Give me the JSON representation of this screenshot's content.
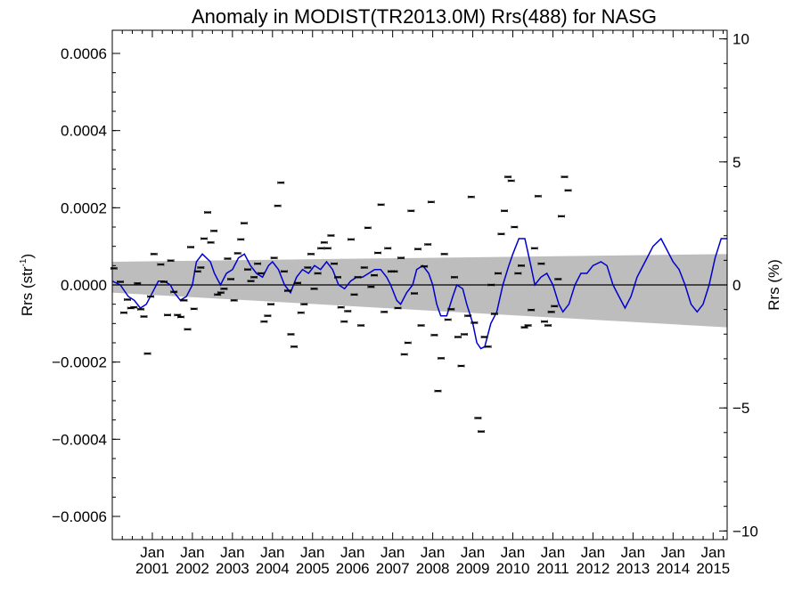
{
  "chart_data": {
    "type": "scatter",
    "title": "Anomaly in MODIST(TR2013.0M) Rrs(488) for NASG",
    "ylabel_left": {
      "main": "Rrs (str",
      "sup": "-1",
      "close": ")"
    },
    "ylabel_right": "Rrs (%)",
    "xlim": [
      2000.0,
      2015.35
    ],
    "ylim": [
      -0.00066,
      0.00066
    ],
    "ylim_right": [
      -10.35,
      10.35
    ],
    "x_ticks": [
      {
        "x": 2001.0,
        "top": "Jan",
        "bottom": "2001"
      },
      {
        "x": 2002.0,
        "top": "Jan",
        "bottom": "2002"
      },
      {
        "x": 2003.0,
        "top": "Jan",
        "bottom": "2003"
      },
      {
        "x": 2004.0,
        "top": "Jan",
        "bottom": "2004"
      },
      {
        "x": 2005.0,
        "top": "Jan",
        "bottom": "2005"
      },
      {
        "x": 2006.0,
        "top": "Jan",
        "bottom": "2006"
      },
      {
        "x": 2007.0,
        "top": "Jan",
        "bottom": "2007"
      },
      {
        "x": 2008.0,
        "top": "Jan",
        "bottom": "2008"
      },
      {
        "x": 2009.0,
        "top": "Jan",
        "bottom": "2009"
      },
      {
        "x": 2010.0,
        "top": "Jan",
        "bottom": "2010"
      },
      {
        "x": 2011.0,
        "top": "Jan",
        "bottom": "2011"
      },
      {
        "x": 2012.0,
        "top": "Jan",
        "bottom": "2012"
      },
      {
        "x": 2013.0,
        "top": "Jan",
        "bottom": "2013"
      },
      {
        "x": 2014.0,
        "top": "Jan",
        "bottom": "2014"
      },
      {
        "x": 2015.0,
        "top": "Jan",
        "bottom": "2015"
      }
    ],
    "y_ticks_left": [
      {
        "value": 0.0006,
        "label": "0.0006"
      },
      {
        "value": 0.0004,
        "label": "0.0004"
      },
      {
        "value": 0.0002,
        "label": "0.0002"
      },
      {
        "value": 0.0,
        "label": "0.0000"
      },
      {
        "value": -0.0002,
        "label": "−0.0002"
      },
      {
        "value": -0.0004,
        "label": "−0.0004"
      },
      {
        "value": -0.0006,
        "label": "−0.0006"
      }
    ],
    "y_ticks_right": [
      {
        "value": 10,
        "label": "10"
      },
      {
        "value": 5,
        "label": "5"
      },
      {
        "value": 0,
        "label": "0"
      },
      {
        "value": -5,
        "label": "−5"
      },
      {
        "value": -10,
        "label": "−10"
      }
    ],
    "uncertainty_band": {
      "x": [
        2000.0,
        2015.35
      ],
      "upper": [
        6e-05,
        8e-05
      ],
      "lower": [
        -2e-05,
        -0.00011
      ]
    },
    "scatter_points": [
      [
        2000.04,
        4.3e-05
      ],
      [
        2000.2,
        8e-06
      ],
      [
        2000.29,
        -7.2e-05
      ],
      [
        2000.38,
        -3.8e-05
      ],
      [
        2000.46,
        -6e-05
      ],
      [
        2000.54,
        -5.8e-05
      ],
      [
        2000.63,
        4e-06
      ],
      [
        2000.71,
        -6.3e-05
      ],
      [
        2000.79,
        -8.2e-05
      ],
      [
        2000.88,
        -0.000178
      ],
      [
        2000.96,
        -3e-05
      ],
      [
        2001.04,
        8e-05
      ],
      [
        2001.21,
        5.3e-05
      ],
      [
        2001.29,
        8e-06
      ],
      [
        2001.38,
        -7.8e-05
      ],
      [
        2001.46,
        6.3e-05
      ],
      [
        2001.54,
        -1.8e-05
      ],
      [
        2001.63,
        -7.8e-05
      ],
      [
        2001.71,
        -8.3e-05
      ],
      [
        2001.79,
        -4e-05
      ],
      [
        2001.88,
        -0.000115
      ],
      [
        2001.96,
        9.8e-05
      ],
      [
        2002.04,
        -6.2e-05
      ],
      [
        2002.13,
        3.5e-05
      ],
      [
        2002.21,
        4.5e-05
      ],
      [
        2002.29,
        0.00012
      ],
      [
        2002.38,
        0.000188
      ],
      [
        2002.46,
        0.00011
      ],
      [
        2002.54,
        0.00014
      ],
      [
        2002.63,
        -2.5e-05
      ],
      [
        2002.71,
        -2e-05
      ],
      [
        2002.79,
        -1e-05
      ],
      [
        2002.88,
        6.8e-05
      ],
      [
        2002.96,
        1.5e-05
      ],
      [
        2003.04,
        -4e-05
      ],
      [
        2003.13,
        8.2e-05
      ],
      [
        2003.21,
        0.000118
      ],
      [
        2003.29,
        0.00016
      ],
      [
        2003.38,
        4e-05
      ],
      [
        2003.46,
        1e-05
      ],
      [
        2003.54,
        2e-05
      ],
      [
        2003.63,
        5.5e-05
      ],
      [
        2003.71,
        3e-05
      ],
      [
        2003.79,
        -9.5e-05
      ],
      [
        2003.88,
        -8e-05
      ],
      [
        2003.96,
        -5e-05
      ],
      [
        2004.04,
        7e-05
      ],
      [
        2004.13,
        0.000205
      ],
      [
        2004.21,
        0.000265
      ],
      [
        2004.29,
        3.5e-05
      ],
      [
        2004.38,
        -1.5e-05
      ],
      [
        2004.46,
        -0.000128
      ],
      [
        2004.54,
        -0.00016
      ],
      [
        2004.63,
        5e-06
      ],
      [
        2004.71,
        -7.2e-05
      ],
      [
        2004.79,
        -5e-05
      ],
      [
        2004.88,
        4.5e-05
      ],
      [
        2004.96,
        8e-05
      ],
      [
        2005.04,
        -1e-05
      ],
      [
        2005.13,
        3e-05
      ],
      [
        2005.21,
        9.5e-05
      ],
      [
        2005.29,
        0.00011
      ],
      [
        2005.38,
        9.5e-05
      ],
      [
        2005.46,
        0.000128
      ],
      [
        2005.54,
        5.5e-05
      ],
      [
        2005.63,
        2e-05
      ],
      [
        2005.71,
        -5.8e-05
      ],
      [
        2005.79,
        -9.5e-05
      ],
      [
        2005.88,
        -6.8e-05
      ],
      [
        2005.96,
        0.000118
      ],
      [
        2006.04,
        -2.5e-05
      ],
      [
        2006.13,
        2e-05
      ],
      [
        2006.21,
        -0.000105
      ],
      [
        2006.29,
        4.5e-05
      ],
      [
        2006.38,
        0.000148
      ],
      [
        2006.46,
        -5e-06
      ],
      [
        2006.54,
        2.5e-05
      ],
      [
        2006.63,
        8.3e-05
      ],
      [
        2006.71,
        0.000208
      ],
      [
        2006.79,
        -7e-05
      ],
      [
        2006.88,
        9.5e-05
      ],
      [
        2006.96,
        3.5e-05
      ],
      [
        2007.04,
        3.5e-05
      ],
      [
        2007.13,
        -6e-05
      ],
      [
        2007.21,
        7e-05
      ],
      [
        2007.29,
        -0.00018
      ],
      [
        2007.38,
        -0.00015
      ],
      [
        2007.46,
        0.000192
      ],
      [
        2007.54,
        -2.2e-05
      ],
      [
        2007.63,
        9.3e-05
      ],
      [
        2007.71,
        -0.000105
      ],
      [
        2007.79,
        4.8e-05
      ],
      [
        2007.88,
        0.000105
      ],
      [
        2007.96,
        0.000215
      ],
      [
        2008.04,
        -0.00013
      ],
      [
        2008.13,
        -0.000275
      ],
      [
        2008.21,
        -0.00019
      ],
      [
        2008.29,
        8e-05
      ],
      [
        2008.38,
        -9e-05
      ],
      [
        2008.46,
        -6.3e-05
      ],
      [
        2008.54,
        2e-05
      ],
      [
        2008.63,
        -0.000135
      ],
      [
        2008.71,
        -0.00021
      ],
      [
        2008.79,
        -0.000128
      ],
      [
        2008.88,
        -8e-05
      ],
      [
        2008.96,
        0.000228
      ],
      [
        2009.04,
        -9.8e-05
      ],
      [
        2009.13,
        -0.000345
      ],
      [
        2009.21,
        -0.00038
      ],
      [
        2009.29,
        -0.000135
      ],
      [
        2009.38,
        -0.00016
      ],
      [
        2009.46,
        0.0
      ],
      [
        2009.54,
        -7.5e-05
      ],
      [
        2009.63,
        3e-05
      ],
      [
        2009.71,
        0.000132
      ],
      [
        2009.79,
        0.000192
      ],
      [
        2009.88,
        0.00028
      ],
      [
        2009.96,
        0.00027
      ],
      [
        2010.04,
        0.00015
      ],
      [
        2010.13,
        3e-05
      ],
      [
        2010.21,
        5e-05
      ],
      [
        2010.29,
        -0.00011
      ],
      [
        2010.38,
        -0.000105
      ],
      [
        2010.46,
        -6.5e-05
      ],
      [
        2010.54,
        9.5e-05
      ],
      [
        2010.63,
        0.00023
      ],
      [
        2010.71,
        5.5e-05
      ],
      [
        2010.79,
        -9.5e-05
      ],
      [
        2010.88,
        -0.000105
      ],
      [
        2010.96,
        -7e-05
      ],
      [
        2011.04,
        -5.5e-05
      ],
      [
        2011.13,
        1.5e-05
      ],
      [
        2011.21,
        0.000178
      ],
      [
        2011.29,
        0.00028
      ],
      [
        2011.38,
        0.000245
      ]
    ],
    "blue_line": [
      [
        2000.0,
        1e-05
      ],
      [
        2000.2,
        0.0
      ],
      [
        2000.4,
        -3e-05
      ],
      [
        2000.55,
        -4e-05
      ],
      [
        2000.7,
        -6e-05
      ],
      [
        2000.85,
        -5e-05
      ],
      [
        2001.0,
        -2e-05
      ],
      [
        2001.15,
        1e-05
      ],
      [
        2001.3,
        1e-05
      ],
      [
        2001.45,
        0.0
      ],
      [
        2001.55,
        -2e-05
      ],
      [
        2001.7,
        -4e-05
      ],
      [
        2001.85,
        -3e-05
      ],
      [
        2002.0,
        0.0
      ],
      [
        2002.1,
        6e-05
      ],
      [
        2002.25,
        8e-05
      ],
      [
        2002.45,
        6e-05
      ],
      [
        2002.55,
        3e-05
      ],
      [
        2002.7,
        0.0
      ],
      [
        2002.85,
        3e-05
      ],
      [
        2003.0,
        4e-05
      ],
      [
        2003.15,
        7e-05
      ],
      [
        2003.3,
        8e-05
      ],
      [
        2003.45,
        5e-05
      ],
      [
        2003.6,
        3e-05
      ],
      [
        2003.75,
        2e-05
      ],
      [
        2003.9,
        5e-05
      ],
      [
        2004.0,
        6e-05
      ],
      [
        2004.15,
        4e-05
      ],
      [
        2004.3,
        0.0
      ],
      [
        2004.45,
        -2e-05
      ],
      [
        2004.6,
        2e-05
      ],
      [
        2004.75,
        4e-05
      ],
      [
        2004.9,
        3e-05
      ],
      [
        2005.05,
        5e-05
      ],
      [
        2005.2,
        4e-05
      ],
      [
        2005.35,
        6e-05
      ],
      [
        2005.5,
        4e-05
      ],
      [
        2005.65,
        0.0
      ],
      [
        2005.8,
        -1e-05
      ],
      [
        2005.95,
        1e-05
      ],
      [
        2006.1,
        2e-05
      ],
      [
        2006.25,
        2e-05
      ],
      [
        2006.4,
        3e-05
      ],
      [
        2006.55,
        4e-05
      ],
      [
        2006.7,
        4e-05
      ],
      [
        2006.85,
        2e-05
      ],
      [
        2006.95,
        0.0
      ],
      [
        2007.1,
        -4e-05
      ],
      [
        2007.2,
        -5e-05
      ],
      [
        2007.35,
        -2e-05
      ],
      [
        2007.5,
        0.0
      ],
      [
        2007.6,
        4e-05
      ],
      [
        2007.75,
        5e-05
      ],
      [
        2007.9,
        3e-05
      ],
      [
        2008.0,
        0.0
      ],
      [
        2008.1,
        -5e-05
      ],
      [
        2008.2,
        -8e-05
      ],
      [
        2008.35,
        -8e-05
      ],
      [
        2008.5,
        -3e-05
      ],
      [
        2008.6,
        0.0
      ],
      [
        2008.75,
        -1e-05
      ],
      [
        2008.85,
        -5e-05
      ],
      [
        2009.0,
        -0.0001
      ],
      [
        2009.1,
        -0.00015
      ],
      [
        2009.2,
        -0.000165
      ],
      [
        2009.3,
        -0.00016
      ],
      [
        2009.45,
        -0.0001
      ],
      [
        2009.6,
        -7e-05
      ],
      [
        2009.75,
        -0.0
      ],
      [
        2009.9,
        5e-05
      ],
      [
        2010.0,
        8e-05
      ],
      [
        2010.15,
        0.00012
      ],
      [
        2010.3,
        0.00012
      ],
      [
        2010.45,
        5e-05
      ],
      [
        2010.55,
        0.0
      ],
      [
        2010.7,
        2e-05
      ],
      [
        2010.85,
        3e-05
      ],
      [
        2011.0,
        0.0
      ],
      [
        2011.15,
        -5e-05
      ],
      [
        2011.25,
        -7e-05
      ],
      [
        2011.4,
        -5e-05
      ],
      [
        2011.55,
        0.0
      ],
      [
        2011.7,
        3e-05
      ],
      [
        2011.85,
        3e-05
      ],
      [
        2012.0,
        5e-05
      ],
      [
        2012.2,
        6e-05
      ],
      [
        2012.35,
        5e-05
      ],
      [
        2012.5,
        0.0
      ],
      [
        2012.65,
        -3e-05
      ],
      [
        2012.8,
        -6e-05
      ],
      [
        2012.95,
        -3e-05
      ],
      [
        2013.1,
        2e-05
      ],
      [
        2013.3,
        6e-05
      ],
      [
        2013.5,
        0.0001
      ],
      [
        2013.7,
        0.00012
      ],
      [
        2013.85,
        9e-05
      ],
      [
        2014.0,
        6e-05
      ],
      [
        2014.15,
        4e-05
      ],
      [
        2014.3,
        0.0
      ],
      [
        2014.45,
        -5e-05
      ],
      [
        2014.6,
        -7e-05
      ],
      [
        2014.75,
        -5e-05
      ],
      [
        2014.9,
        0.0
      ],
      [
        2015.05,
        7e-05
      ],
      [
        2015.2,
        0.00012
      ],
      [
        2015.35,
        0.00012
      ]
    ]
  }
}
